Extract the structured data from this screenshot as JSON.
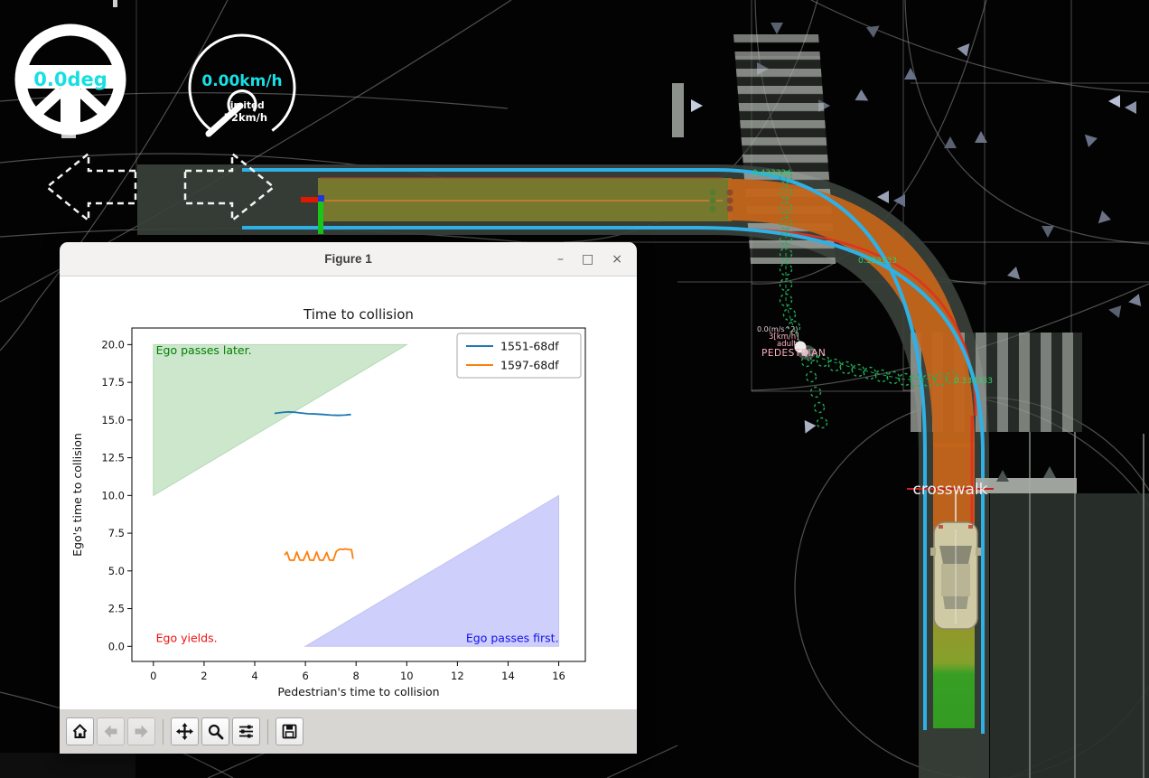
{
  "hud": {
    "steering_angle": "0.0deg",
    "speed": "0.00km/h",
    "limit_label": "limited",
    "limit_value": "72km/h"
  },
  "sim": {
    "crosswalk_label": "crosswalk",
    "ttc_top": "0.433334",
    "ttc_mid": "0.333333",
    "ttc_right": "0.333333",
    "pedestrian": {
      "accel": "0.0(m/s^2)",
      "speed": "3[km/h]",
      "type": "adult",
      "name": "PEDESTRIAN"
    }
  },
  "window": {
    "title": "Figure 1",
    "minimize": "–",
    "maximize": "□",
    "close": "×",
    "toolbar": {
      "home": "Home",
      "back": "Back",
      "forward": "Forward",
      "pan": "Pan",
      "zoom": "Zoom",
      "subplots": "Configure subplots",
      "save": "Save"
    }
  },
  "chart_data": {
    "type": "line",
    "title": "Time to collision",
    "xlabel": "Pedestrian's time to collision",
    "ylabel": "Ego's time to collision",
    "xlim": [
      -0.85,
      17.05
    ],
    "ylim": [
      -1.0,
      21.1
    ],
    "xticks": [
      0,
      2,
      4,
      6,
      8,
      10,
      12,
      14,
      16
    ],
    "yticks": [
      "0.0",
      "2.5",
      "5.0",
      "7.5",
      "10.0",
      "12.5",
      "15.0",
      "17.5",
      "20.0"
    ],
    "grid": false,
    "legend_position": "upper right",
    "series": [
      {
        "name": "1551-68df",
        "color": "#1f77b4",
        "x": [
          4.78,
          5.05,
          5.3,
          5.55,
          5.8,
          6.1,
          6.4,
          6.7,
          7.0,
          7.3,
          7.55,
          7.8
        ],
        "y": [
          15.44,
          15.5,
          15.54,
          15.52,
          15.47,
          15.42,
          15.4,
          15.37,
          15.33,
          15.31,
          15.33,
          15.37
        ]
      },
      {
        "name": "1597-68df",
        "color": "#ff7f0e",
        "x": [
          5.18,
          5.27,
          5.38,
          5.55,
          5.66,
          5.78,
          5.92,
          6.07,
          6.17,
          6.32,
          6.44,
          6.56,
          6.7,
          6.84,
          6.95,
          7.1,
          7.22,
          7.36,
          7.5,
          7.56,
          7.72,
          7.82,
          7.88
        ],
        "y": [
          6.05,
          6.25,
          5.72,
          5.7,
          6.25,
          5.72,
          5.7,
          6.28,
          5.72,
          5.7,
          6.25,
          5.72,
          5.7,
          6.22,
          5.72,
          5.7,
          6.3,
          6.45,
          6.42,
          6.46,
          6.42,
          6.4,
          5.8
        ]
      }
    ],
    "regions": [
      {
        "name": "ego-passes-later",
        "fill": "#cde7cd",
        "edge": "#b5d9b5",
        "points": [
          [
            0,
            10
          ],
          [
            0,
            20
          ],
          [
            10,
            20
          ]
        ]
      },
      {
        "name": "ego-passes-first",
        "fill": "#cfcffc",
        "edge": "#c3c3f2",
        "points": [
          [
            6,
            0
          ],
          [
            16,
            0
          ],
          [
            16,
            10
          ]
        ]
      }
    ],
    "annotations": [
      {
        "text": "Ego passes later.",
        "x": 0.1,
        "y": 19.35,
        "color": "#008000",
        "anchor": "start"
      },
      {
        "text": "Ego yields.",
        "x": 0.1,
        "y": 0.3,
        "color": "#ee1111",
        "anchor": "start"
      },
      {
        "text": "Ego passes first.",
        "x": 16.0,
        "y": 0.3,
        "color": "#1111ee",
        "anchor": "end"
      }
    ]
  }
}
